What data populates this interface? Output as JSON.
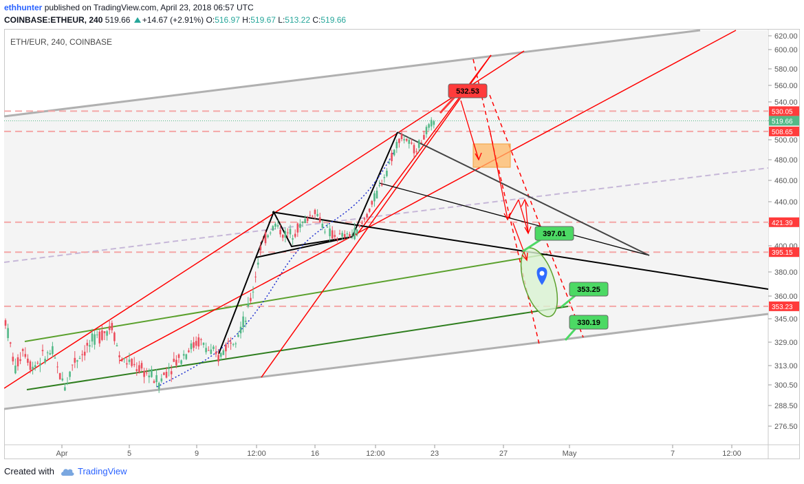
{
  "header": {
    "author": "ethhunter",
    "published_text": "published on TradingView.com, April 23, 2018 06:57 UTC",
    "symbol": "COINBASE:ETHEUR, 240",
    "last": "519.66",
    "change": "+14.67 (+2.91%)",
    "o_label": "O:",
    "o_value": "516.97",
    "h_label": "H:",
    "h_value": "519.67",
    "l_label": "L:",
    "l_value": "513.22",
    "c_label": "C:",
    "c_value": "519.66"
  },
  "legend": "ETH/EUR, 240, COINBASE",
  "footer": {
    "created_with": "Created with",
    "brand": "TradingView"
  },
  "colors": {
    "up": "#53b987",
    "down": "#eb4d5c",
    "red_tag": "#ff3b3b",
    "green_tag": "#4cd964",
    "channel": "#b0b0b0",
    "trend_red": "#ff0000",
    "green_line": "#5aa02c",
    "dark_green": "#2e7d1e"
  },
  "chart_data": {
    "type": "candlestick",
    "instrument": "ETH/EUR",
    "y_ticks": [
      620,
      600,
      580,
      560,
      540,
      520,
      500,
      480,
      460,
      440,
      420,
      400,
      380,
      360,
      345,
      329,
      313,
      300.5,
      288.5,
      276.5
    ],
    "x_ticks": [
      "Apr",
      "5",
      "9",
      "12:00",
      "16",
      "12:00",
      "23",
      "27",
      "May",
      "7",
      "12:00"
    ],
    "price_tags": [
      {
        "label": "530.05",
        "value": 530.05,
        "color": "#ff3b3b"
      },
      {
        "label": "519.66",
        "value": 519.66,
        "color": "#53b987"
      },
      {
        "label": "508.65",
        "value": 508.65,
        "color": "#ff3b3b"
      },
      {
        "label": "421.39",
        "value": 421.39,
        "color": "#ff3b3b"
      },
      {
        "label": "395.15",
        "value": 395.15,
        "color": "#ff3b3b"
      },
      {
        "label": "353.23",
        "value": 353.23,
        "color": "#ff3b3b"
      }
    ],
    "horizontal_levels": [
      530.05,
      508.65,
      421.39,
      395.15,
      353.23
    ],
    "callouts": [
      {
        "label": "532.53",
        "value": 532.53,
        "color": "#ff3b3b"
      },
      {
        "label": "397.01",
        "value": 397.01,
        "color": "#4cd964"
      },
      {
        "label": "353.25",
        "value": 353.25,
        "color": "#4cd964"
      },
      {
        "label": "330.19",
        "value": 330.19,
        "color": "#4cd964"
      }
    ],
    "ohlc_last": {
      "open": 516.97,
      "high": 519.67,
      "low": 513.22,
      "close": 519.66
    },
    "grid": false,
    "legend_position": "top-left"
  }
}
